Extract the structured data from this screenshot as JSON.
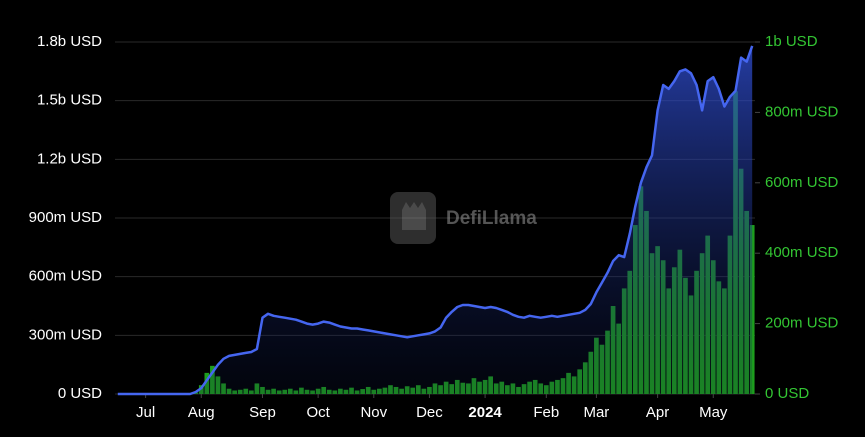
{
  "watermark": "DefiLlama",
  "chart_data": {
    "type": "combo",
    "categories": [
      null,
      null,
      null,
      null,
      null,
      "Jul",
      null,
      null,
      null,
      null,
      null,
      null,
      null,
      null,
      null,
      "Aug",
      null,
      null,
      null,
      null,
      null,
      null,
      null,
      null,
      null,
      null,
      "Sep",
      null,
      null,
      null,
      null,
      null,
      null,
      null,
      null,
      null,
      "Oct",
      null,
      null,
      null,
      null,
      null,
      null,
      null,
      null,
      null,
      "Nov",
      null,
      null,
      null,
      null,
      null,
      null,
      null,
      null,
      null,
      "Dec",
      null,
      null,
      null,
      null,
      null,
      null,
      null,
      null,
      null,
      "2024",
      null,
      null,
      null,
      null,
      null,
      null,
      null,
      null,
      null,
      null,
      "Feb",
      null,
      null,
      null,
      null,
      null,
      null,
      null,
      null,
      "Mar",
      null,
      null,
      null,
      null,
      null,
      null,
      null,
      null,
      null,
      null,
      "Apr",
      null,
      null,
      null,
      null,
      null,
      null,
      null,
      null,
      null,
      "May",
      null,
      null,
      null,
      null,
      null,
      null,
      null
    ],
    "series": [
      {
        "type": "area",
        "color": "#4566f0",
        "values": [
          0,
          0,
          0,
          0,
          0,
          0,
          0,
          0,
          0,
          0,
          0,
          0,
          0,
          0,
          10000000.0,
          30000000.0,
          70000000.0,
          110000000.0,
          150000000.0,
          180000000.0,
          195000000.0,
          200000000.0,
          205000000.0,
          210000000.0,
          215000000.0,
          230000000.0,
          390000000.0,
          410000000.0,
          400000000.0,
          395000000.0,
          390000000.0,
          385000000.0,
          380000000.0,
          370000000.0,
          360000000.0,
          355000000.0,
          360000000.0,
          370000000.0,
          365000000.0,
          355000000.0,
          345000000.0,
          340000000.0,
          335000000.0,
          335000000.0,
          330000000.0,
          325000000.0,
          320000000.0,
          315000000.0,
          310000000.0,
          305000000.0,
          300000000.0,
          295000000.0,
          290000000.0,
          295000000.0,
          300000000.0,
          305000000.0,
          310000000.0,
          320000000.0,
          340000000.0,
          390000000.0,
          420000000.0,
          445000000.0,
          455000000.0,
          455000000.0,
          450000000.0,
          445000000.0,
          440000000.0,
          445000000.0,
          440000000.0,
          430000000.0,
          420000000.0,
          405000000.0,
          395000000.0,
          390000000.0,
          400000000.0,
          395000000.0,
          390000000.0,
          395000000.0,
          400000000.0,
          395000000.0,
          400000000.0,
          405000000.0,
          410000000.0,
          415000000.0,
          430000000.0,
          460000000.0,
          520000000.0,
          570000000.0,
          620000000.0,
          680000000.0,
          710000000.0,
          700000000.0,
          820000000.0,
          960000000.0,
          1080000000.0,
          1160000000.0,
          1220000000.0,
          1450000000.0,
          1580000000.0,
          1560000000.0,
          1600000000.0,
          1650000000.0,
          1660000000.0,
          1640000000.0,
          1580000000.0,
          1450000000.0,
          1600000000.0,
          1620000000.0,
          1560000000.0,
          1470000000.0,
          1520000000.0,
          1550000000.0,
          1720000000.0,
          1700000000.0,
          1780000000.0
        ]
      },
      {
        "type": "bar",
        "axis": "y2",
        "color": "#1d9e1d",
        "values": [
          0,
          0,
          0,
          0,
          0,
          0,
          0,
          0,
          0,
          0,
          0,
          0,
          0,
          2000000.0,
          5000000.0,
          25000000.0,
          60000000.0,
          80000000.0,
          50000000.0,
          30000000.0,
          15000000.0,
          10000000.0,
          12000000.0,
          15000000.0,
          10000000.0,
          30000000.0,
          20000000.0,
          12000000.0,
          15000000.0,
          10000000.0,
          12000000.0,
          15000000.0,
          10000000.0,
          18000000.0,
          12000000.0,
          10000000.0,
          15000000.0,
          20000000.0,
          12000000.0,
          10000000.0,
          15000000.0,
          12000000.0,
          18000000.0,
          10000000.0,
          14000000.0,
          20000000.0,
          12000000.0,
          15000000.0,
          18000000.0,
          25000000.0,
          20000000.0,
          15000000.0,
          22000000.0,
          18000000.0,
          25000000.0,
          15000000.0,
          20000000.0,
          30000000.0,
          25000000.0,
          35000000.0,
          28000000.0,
          40000000.0,
          32000000.0,
          30000000.0,
          45000000.0,
          35000000.0,
          40000000.0,
          50000000.0,
          30000000.0,
          35000000.0,
          25000000.0,
          30000000.0,
          20000000.0,
          28000000.0,
          35000000.0,
          40000000.0,
          30000000.0,
          25000000.0,
          35000000.0,
          40000000.0,
          45000000.0,
          60000000.0,
          50000000.0,
          70000000.0,
          90000000.0,
          120000000.0,
          160000000.0,
          140000000.0,
          180000000.0,
          250000000.0,
          200000000.0,
          300000000.0,
          350000000.0,
          480000000.0,
          590000000.0,
          520000000.0,
          400000000.0,
          420000000.0,
          380000000.0,
          300000000.0,
          360000000.0,
          410000000.0,
          330000000.0,
          280000000.0,
          350000000.0,
          400000000.0,
          450000000.0,
          380000000.0,
          320000000.0,
          300000000.0,
          450000000.0,
          860000000.0,
          640000000.0,
          520000000.0,
          480000000.0
        ]
      }
    ],
    "ylim": [
      0,
      1800000000
    ],
    "yticks": [
      {
        "value": 0,
        "label": "0 USD"
      },
      {
        "value": 300000000,
        "label": "300m USD"
      },
      {
        "value": 600000000,
        "label": "600m USD"
      },
      {
        "value": 900000000,
        "label": "900m USD"
      },
      {
        "value": 1200000000,
        "label": "1.2b USD"
      },
      {
        "value": 1500000000,
        "label": "1.5b USD"
      },
      {
        "value": 1800000000,
        "label": "1.8b USD"
      }
    ],
    "y2lim": [
      0,
      1000000000
    ],
    "y2ticks": [
      {
        "value": 0,
        "label": "0 USD"
      },
      {
        "value": 200000000,
        "label": "200m USD"
      },
      {
        "value": 400000000,
        "label": "400m USD"
      },
      {
        "value": 600000000,
        "label": "600m USD"
      },
      {
        "value": 800000000,
        "label": "800m USD"
      },
      {
        "value": 1000000000,
        "label": "1b USD"
      }
    ],
    "grid": true
  }
}
